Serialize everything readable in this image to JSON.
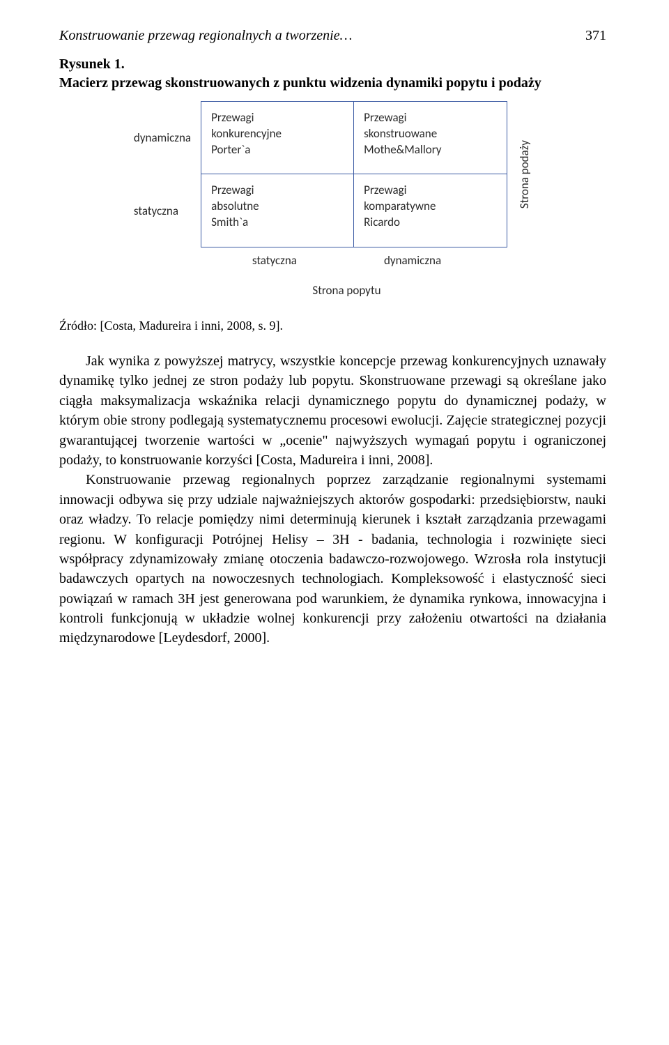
{
  "header": {
    "running_title": "Konstruowanie przewag regionalnych a tworzenie…",
    "page_number": "371"
  },
  "figure": {
    "caption_line1": "Rysunek 1.",
    "caption_line2": "Macierz przewag skonstruowanych z punktu widzenia dynamiki popytu i podaży",
    "left_top": "dynamiczna",
    "left_bottom": "statyczna",
    "right_axis": "Strona podaży",
    "bottom_left": "statyczna",
    "bottom_right": "dynamiczna",
    "bottom_axis": "Strona popytu",
    "cells": {
      "tl_l1": "Przewagi",
      "tl_l2": "konkurencyjne",
      "tl_l3": "Porter`a",
      "tr_l1": "Przewagi",
      "tr_l2": "skonstruowane",
      "tr_l3": "Mothe&Mallory",
      "bl_l1": "Przewagi",
      "bl_l2": "absolutne",
      "bl_l3": "Smith`a",
      "br_l1": "Przewagi",
      "br_l2": "komparatywne",
      "br_l3": "Ricardo"
    },
    "source": "Źródło: [Costa, Madureira i inni, 2008, s. 9]."
  },
  "body": {
    "p1": "Jak wynika z powyższej matrycy, wszystkie koncepcje przewag konkurencyjnych uznawały dynamikę tylko jednej ze stron podaży lub popytu. Skonstruowane przewagi są określane jako ciągła maksymalizacja wskaźnika relacji dynamicznego popytu do dynamicznej podaży, w którym obie strony podlegają systematycznemu procesowi ewolucji. Zajęcie strategicznej pozycji gwarantującej tworzenie wartości w „ocenie\" najwyższych wymagań popytu i ograniczonej podaży, to konstruowanie korzyści [Costa, Madureira i inni, 2008].",
    "p2": "Konstruowanie przewag regionalnych poprzez zarządzanie regionalnymi systemami innowacji odbywa się przy udziale najważniejszych aktorów gospodarki:  przedsiębiorstw, nauki oraz władzy. To relacje pomiędzy nimi determinują kierunek i kształt zarządzania przewagami regionu. W konfiguracji Potrójnej Helisy – 3H - badania, technologia i rozwinięte sieci współpracy zdynamizowały zmianę otoczenia badawczo-rozwojowego. Wzrosła rola instytucji badawczych opartych na nowoczesnych technologiach. Kompleksowość i elastyczność sieci powiązań w ramach 3H jest generowana pod warunkiem, że dynamika rynkowa, innowacyjna i kontroli funkcjonują w układzie wolnej konkurencji przy założeniu otwartości na działania międzynarodowe [Leydesdorf, 2000]."
  },
  "style": {
    "body_font_size_pt": 15,
    "diagram_font_size_pt": 13,
    "border_color": "#3b5aa3",
    "page_bg": "#ffffff",
    "text_color": "#000000",
    "diagram_text_color": "#2a2a2a"
  }
}
